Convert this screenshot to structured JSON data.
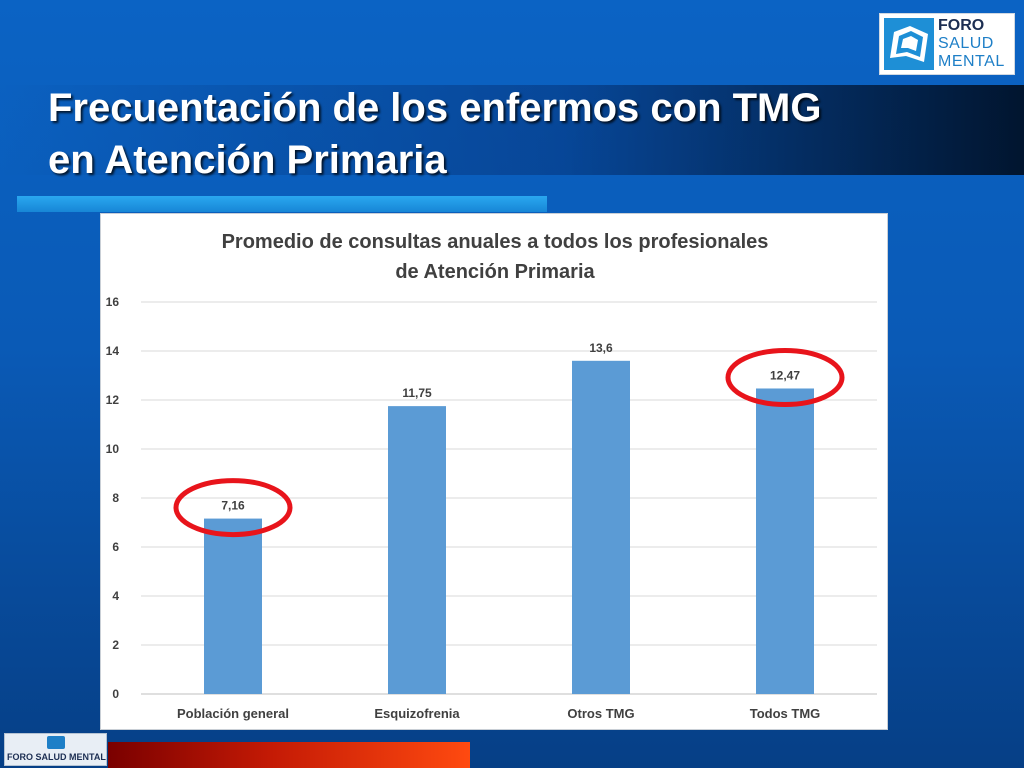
{
  "slide": {
    "title_line1": "Frecuentación de los enfermos con TMG",
    "title_line2": "en Atención Primaria"
  },
  "logo": {
    "line1": "FORO",
    "line2": "SALUD",
    "line3": "MENTAL",
    "icon": "foro-salud-mental-logo-icon"
  },
  "footer_logo": {
    "text": "FORO SALUD MENTAL"
  },
  "colors": {
    "bar": "#5b9bd5",
    "highlight": "#e8141b",
    "background": "#0b63c4"
  },
  "chart_data": {
    "type": "bar",
    "title_line1": "Promedio de consultas anuales a todos los profesionales",
    "title_line2": "de Atención Primaria",
    "categories": [
      "Población general",
      "Esquizofrenia",
      "Otros TMG",
      "Todos TMG"
    ],
    "values": [
      7.16,
      11.75,
      13.6,
      12.47
    ],
    "data_labels": [
      "7,16",
      "11,75",
      "13,6",
      "12,47"
    ],
    "ylim": [
      0,
      16
    ],
    "yticks": [
      "0",
      "2",
      "4",
      "6",
      "8",
      "10",
      "12",
      "14",
      "16"
    ],
    "grid": true,
    "legend": false,
    "highlighted_categories": [
      "Población general",
      "Todos TMG"
    ]
  }
}
